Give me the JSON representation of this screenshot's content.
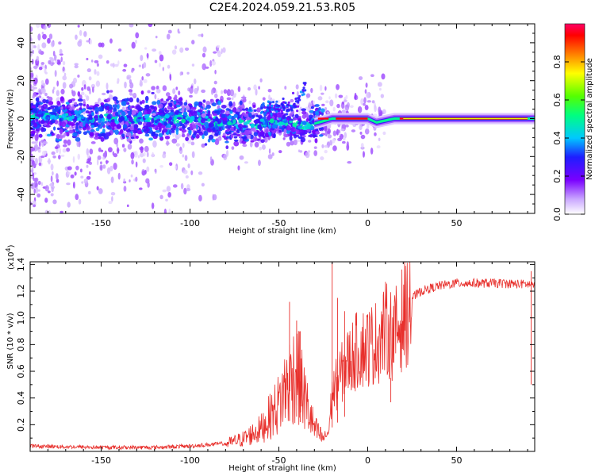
{
  "title": "C2E4.2024.059.21.53.R05",
  "colors": {
    "snr_line": "#e8302c",
    "axes": "#000000",
    "background": "#ffffff"
  },
  "chart_data": [
    {
      "type": "heatmap",
      "xlabel": "Height of straight line (km)",
      "ylabel": "Frequency (Hz)",
      "xlim": [
        -190,
        94
      ],
      "ylim": [
        -50,
        50
      ],
      "xticks": [
        -150,
        -100,
        -50,
        0,
        50
      ],
      "yticks": [
        -40,
        -20,
        0,
        20,
        40
      ],
      "colorbar": {
        "label": "Normalized spectral amplitude",
        "range": [
          0.0,
          1.0
        ],
        "ticks": [
          "0.0",
          "0.2",
          "0.4",
          "0.6",
          "0.8"
        ]
      },
      "ridge_center_hz": [
        {
          "x": -190,
          "y": 1
        },
        {
          "x": -150,
          "y": 0
        },
        {
          "x": -100,
          "y": 0
        },
        {
          "x": -75,
          "y": -3
        },
        {
          "x": -50,
          "y": -2
        },
        {
          "x": -35,
          "y": -4
        },
        {
          "x": -20,
          "y": 0
        },
        {
          "x": 0,
          "y": 0
        },
        {
          "x": 5,
          "y": -2
        },
        {
          "x": 15,
          "y": 0
        },
        {
          "x": 94,
          "y": 0
        }
      ],
      "upper_branch_hz": [
        {
          "x": -60,
          "y": 4
        },
        {
          "x": -45,
          "y": 6
        },
        {
          "x": -38,
          "y": 10
        },
        {
          "x": -35,
          "y": 18
        }
      ]
    },
    {
      "type": "line",
      "xlabel": "Height of straight line (km)",
      "ylabel": "SNR (10 * v/v)",
      "y_multiplier": "(x10",
      "y_multiplier_exp": "4",
      "y_multiplier_close": ")",
      "xlim": [
        -190,
        94
      ],
      "ylim": [
        0,
        1.42
      ],
      "xticks": [
        -150,
        -100,
        -50,
        0,
        50
      ],
      "yticks": [
        "0.2",
        "0.4",
        "0.6",
        "0.8",
        "1.0",
        "1.2",
        "1.4"
      ],
      "envelope": [
        {
          "x": -190,
          "y": 0.04
        },
        {
          "x": -150,
          "y": 0.03
        },
        {
          "x": -120,
          "y": 0.03
        },
        {
          "x": -100,
          "y": 0.04
        },
        {
          "x": -80,
          "y": 0.06
        },
        {
          "x": -70,
          "y": 0.1
        },
        {
          "x": -60,
          "y": 0.18
        },
        {
          "x": -50,
          "y": 0.38
        },
        {
          "x": -45,
          "y": 0.55
        },
        {
          "x": -40,
          "y": 0.65
        },
        {
          "x": -35,
          "y": 0.4
        },
        {
          "x": -30,
          "y": 0.18
        },
        {
          "x": -25,
          "y": 0.1
        },
        {
          "x": -22,
          "y": 0.15
        },
        {
          "x": -20,
          "y": 0.45
        },
        {
          "x": -15,
          "y": 0.6
        },
        {
          "x": -10,
          "y": 0.72
        },
        {
          "x": -5,
          "y": 0.8
        },
        {
          "x": 0,
          "y": 0.82
        },
        {
          "x": 5,
          "y": 0.85
        },
        {
          "x": 10,
          "y": 0.95
        },
        {
          "x": 15,
          "y": 0.9
        },
        {
          "x": 20,
          "y": 1.05
        },
        {
          "x": 25,
          "y": 1.15
        },
        {
          "x": 30,
          "y": 1.2
        },
        {
          "x": 40,
          "y": 1.24
        },
        {
          "x": 50,
          "y": 1.26
        },
        {
          "x": 70,
          "y": 1.26
        },
        {
          "x": 94,
          "y": 1.25
        }
      ],
      "spikes": [
        {
          "x": -44,
          "y": 1.12
        },
        {
          "x": -40,
          "y": 0.98
        },
        {
          "x": -38,
          "y": 0.9
        },
        {
          "x": -20,
          "y": 1.42
        },
        {
          "x": -17,
          "y": 1.15
        },
        {
          "x": -13,
          "y": 1.05
        },
        {
          "x": 13,
          "y": 0.55
        },
        {
          "x": 92,
          "y": 1.35
        }
      ]
    }
  ]
}
